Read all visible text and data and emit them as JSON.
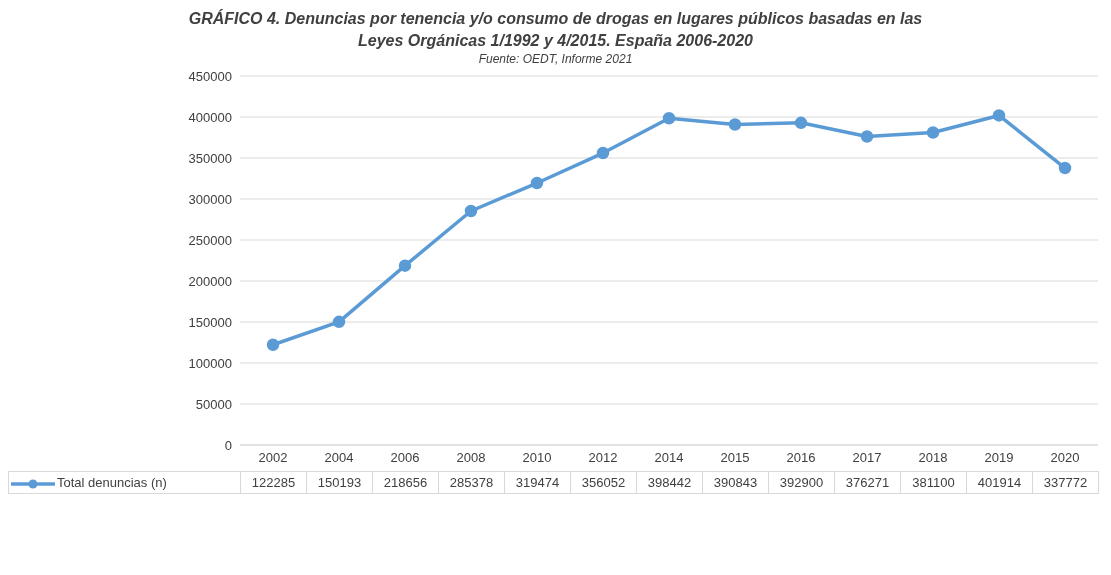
{
  "chart_data": {
    "type": "line",
    "title": "GRÁFICO 4. Denuncias por tenencia y/o consumo de drogas en lugares públicos basadas en las Leyes Orgánicas 1/1992 y 4/2015. España 2006-2020",
    "subtitle": "Fuente: OEDT, Informe 2021",
    "categories": [
      "2002",
      "2004",
      "2006",
      "2008",
      "2010",
      "2012",
      "2014",
      "2015",
      "2016",
      "2017",
      "2018",
      "2019",
      "2020"
    ],
    "series": [
      {
        "name": "Total denuncias (n)",
        "color": "#5b9bd5",
        "values": [
          122285,
          150193,
          218656,
          285378,
          319474,
          356052,
          398442,
          390843,
          392900,
          376271,
          381100,
          401914,
          337772
        ]
      }
    ],
    "ylim": [
      0,
      450000
    ],
    "yticks": [
      0,
      50000,
      100000,
      150000,
      200000,
      250000,
      300000,
      350000,
      400000,
      450000
    ],
    "grid": "y",
    "legend": "bottom",
    "marker": "circle",
    "line_style": "solid",
    "data_labels": true
  }
}
